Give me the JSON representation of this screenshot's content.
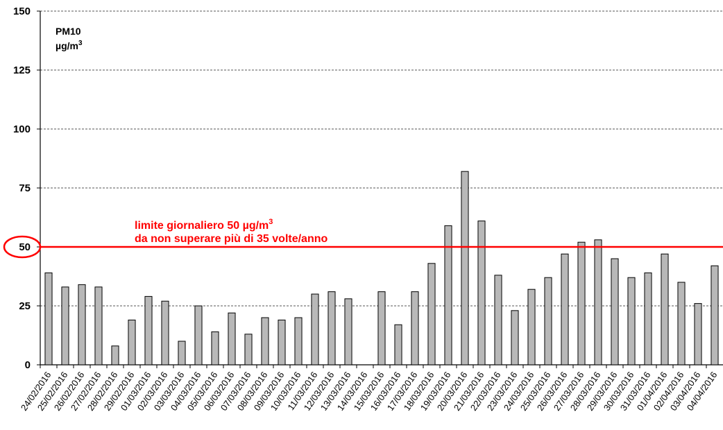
{
  "chart_data": {
    "type": "bar",
    "title": "",
    "series_label": "PM10",
    "unit_label": "µg/m",
    "unit_superscript": "3",
    "ylim": [
      0,
      150
    ],
    "yticks": [
      0,
      25,
      50,
      75,
      100,
      125,
      150
    ],
    "grid": true,
    "categories": [
      "24/02/2016",
      "25/02/2016",
      "26/02/2016",
      "27/02/2016",
      "28/02/2016",
      "29/02/2016",
      "01/03/2016",
      "02/03/2016",
      "03/03/2016",
      "04/03/2016",
      "05/03/2016",
      "06/03/2016",
      "07/03/2016",
      "08/03/2016",
      "09/03/2016",
      "10/03/2016",
      "11/03/2016",
      "12/03/2016",
      "13/03/2016",
      "14/03/2016",
      "15/03/2016",
      "16/03/2016",
      "17/03/2016",
      "18/03/2016",
      "19/03/2016",
      "20/03/2016",
      "21/03/2016",
      "22/03/2016",
      "23/03/2016",
      "24/03/2016",
      "25/03/2016",
      "26/03/2016",
      "27/03/2016",
      "28/03/2016",
      "29/03/2016",
      "30/03/2016",
      "31/03/2016",
      "01/04/2016",
      "02/04/2016",
      "03/04/2016",
      "04/04/2016"
    ],
    "values": [
      39,
      33,
      34,
      33,
      8,
      19,
      29,
      27,
      10,
      25,
      14,
      22,
      13,
      20,
      19,
      20,
      30,
      31,
      28,
      null,
      31,
      17,
      31,
      43,
      59,
      82,
      61,
      38,
      23,
      32,
      37,
      47,
      52,
      53,
      45,
      37,
      39,
      47,
      35,
      26,
      42
    ],
    "limit": {
      "value": 50,
      "color": "#ff0000",
      "text_line1": "limite giornaliero 50 µg/m",
      "text_line1_superscript": "3",
      "text_line2": "da non superare più di 35 volte/anno"
    },
    "bar_color": "#b8b8b8",
    "bar_stroke": "#000000"
  }
}
